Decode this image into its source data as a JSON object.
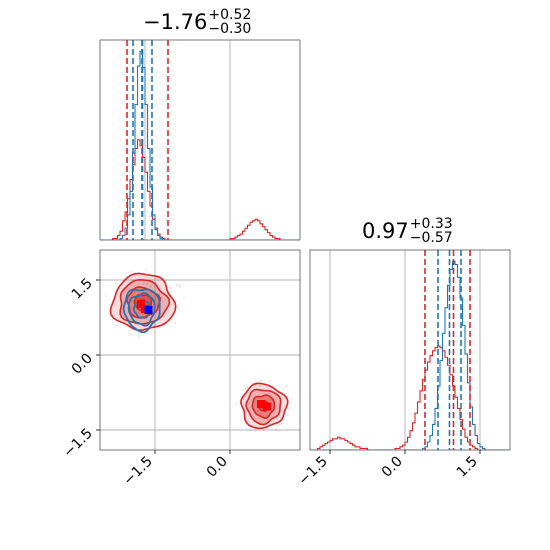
{
  "colors": {
    "sample_a": "#d62728",
    "sample_b": "#1f77b4",
    "truth_a": "#ff0000",
    "truth_b": "#0000ff"
  },
  "chart_data": [
    {
      "type": "histogram",
      "panel": "marginal-param-1",
      "title": {
        "value": "−1.76",
        "upper": "+0.52",
        "lower": "−0.30"
      },
      "xlim": [
        -2.6,
        1.4
      ],
      "bins": [
        -2.6,
        -2.55,
        -2.5,
        -2.45,
        -2.4,
        -2.35,
        -2.3,
        -2.25,
        -2.2,
        -2.15,
        -2.1,
        -2.05,
        -2.0,
        -1.95,
        -1.9,
        -1.85,
        -1.8,
        -1.75,
        -1.7,
        -1.65,
        -1.6,
        -1.55,
        -1.5,
        -1.45,
        -1.4,
        -1.35,
        -1.3,
        -1.25,
        -1.2,
        -1.15,
        -1.1,
        -1.05,
        -1.0,
        -0.95,
        -0.9,
        -0.85,
        -0.8,
        -0.75,
        -0.7,
        -0.65,
        -0.6,
        -0.55,
        -0.5,
        -0.45,
        -0.4,
        -0.35,
        -0.3,
        -0.25,
        -0.2,
        -0.15,
        -0.1,
        -0.05,
        0.0,
        0.05,
        0.1,
        0.15,
        0.2,
        0.25,
        0.3,
        0.35,
        0.4,
        0.45,
        0.5,
        0.55,
        0.6,
        0.65,
        0.7,
        0.75,
        0.8,
        0.85,
        0.9,
        0.95,
        1.0,
        1.05,
        1.1,
        1.15,
        1.2,
        1.25,
        1.3,
        1.35,
        1.4
      ],
      "series": [
        {
          "color": "#d62728",
          "counts": [
            0,
            0,
            0,
            0,
            0,
            1,
            1,
            3,
            6,
            13,
            19,
            28,
            41,
            51,
            62,
            68,
            64,
            56,
            46,
            33,
            23,
            14,
            8,
            4,
            2,
            1,
            0,
            0,
            0,
            0,
            0,
            0,
            0,
            0,
            0,
            0,
            0,
            0,
            0,
            0,
            0,
            0,
            0,
            0,
            0,
            0,
            0,
            0,
            0,
            0,
            0,
            0,
            1,
            1,
            2,
            3,
            4,
            6,
            8,
            10,
            12,
            13,
            14,
            13,
            11,
            9,
            7,
            5,
            3,
            2,
            1,
            1,
            0,
            0,
            0,
            0,
            0,
            0,
            0,
            0
          ]
        },
        {
          "color": "#1f77b4",
          "counts": [
            0,
            0,
            0,
            0,
            0,
            0,
            0,
            0,
            1,
            3,
            8,
            17,
            33,
            59,
            92,
            118,
            128,
            117,
            92,
            62,
            36,
            17,
            7,
            3,
            1,
            0,
            0,
            0,
            0,
            0,
            0,
            0,
            0,
            0,
            0,
            0,
            0,
            0,
            0,
            0,
            0,
            0,
            0,
            0,
            0,
            0,
            0,
            0,
            0,
            0,
            0,
            0,
            0,
            0,
            0,
            0,
            0,
            0,
            0,
            0,
            0,
            0,
            0,
            0,
            0,
            0,
            0,
            0,
            0,
            0,
            0,
            0,
            0,
            0,
            0,
            0,
            0,
            0,
            0,
            0
          ]
        }
      ],
      "vlines": [
        {
          "x": -2.06,
          "color": "#d62728"
        },
        {
          "x": -1.76,
          "color": "#d62728"
        },
        {
          "x": -1.24,
          "color": "#d62728"
        },
        {
          "x": -1.94,
          "color": "#1f77b4"
        },
        {
          "x": -1.75,
          "color": "#1f77b4"
        },
        {
          "x": -1.56,
          "color": "#1f77b4"
        }
      ],
      "truth_lines": [
        -1.7,
        0.0
      ],
      "grid": true
    },
    {
      "type": "histogram",
      "panel": "marginal-param-2",
      "title": {
        "value": "0.97",
        "upper": "+0.33",
        "lower": "−0.57"
      },
      "xlim": [
        -1.9,
        2.1
      ],
      "xticks": [
        -1.5,
        0.0,
        1.5
      ],
      "xticklabels": [
        "−1.5",
        "0.0",
        "1.5"
      ],
      "bins": [
        -1.9,
        -1.85,
        -1.8,
        -1.75,
        -1.7,
        -1.65,
        -1.6,
        -1.55,
        -1.5,
        -1.45,
        -1.4,
        -1.35,
        -1.3,
        -1.25,
        -1.2,
        -1.15,
        -1.1,
        -1.05,
        -1.0,
        -0.95,
        -0.9,
        -0.85,
        -0.8,
        -0.75,
        -0.7,
        -0.65,
        -0.6,
        -0.55,
        -0.5,
        -0.45,
        -0.4,
        -0.35,
        -0.3,
        -0.25,
        -0.2,
        -0.15,
        -0.1,
        -0.05,
        0.0,
        0.05,
        0.1,
        0.15,
        0.2,
        0.25,
        0.3,
        0.35,
        0.4,
        0.45,
        0.5,
        0.55,
        0.6,
        0.65,
        0.7,
        0.75,
        0.8,
        0.85,
        0.9,
        0.95,
        1.0,
        1.05,
        1.1,
        1.15,
        1.2,
        1.25,
        1.3,
        1.35,
        1.4,
        1.45,
        1.5,
        1.55,
        1.6,
        1.65,
        1.7,
        1.75,
        1.8,
        1.85,
        1.9,
        1.95,
        2.0,
        2.05,
        2.1
      ],
      "series": [
        {
          "color": "#d62728",
          "counts": [
            0,
            0,
            0,
            1,
            2,
            3,
            4,
            5,
            6,
            7,
            7,
            8,
            7,
            7,
            6,
            5,
            4,
            3,
            2,
            2,
            1,
            1,
            1,
            0,
            0,
            0,
            0,
            0,
            0,
            0,
            0,
            0,
            0,
            0,
            1,
            1,
            2,
            3,
            5,
            8,
            12,
            17,
            23,
            30,
            37,
            44,
            50,
            55,
            59,
            62,
            64,
            65,
            64,
            62,
            58,
            53,
            47,
            40,
            33,
            26,
            19,
            13,
            8,
            5,
            3,
            2,
            1,
            0,
            0,
            0,
            0,
            0,
            0,
            0,
            0,
            0,
            0,
            0,
            0,
            0
          ]
        },
        {
          "color": "#1f77b4",
          "counts": [
            0,
            0,
            0,
            0,
            0,
            0,
            0,
            0,
            0,
            0,
            0,
            0,
            0,
            0,
            0,
            0,
            0,
            0,
            0,
            0,
            0,
            0,
            0,
            0,
            0,
            0,
            0,
            0,
            0,
            0,
            0,
            0,
            0,
            0,
            0,
            0,
            0,
            0,
            0,
            0,
            0,
            0,
            0,
            0,
            0,
            1,
            2,
            5,
            9,
            16,
            26,
            40,
            56,
            73,
            89,
            103,
            113,
            118,
            116,
            108,
            95,
            78,
            60,
            42,
            27,
            16,
            9,
            4,
            2,
            1,
            0,
            0,
            0,
            0,
            0,
            0,
            0,
            0,
            0,
            0
          ]
        }
      ],
      "vlines": [
        {
          "x": 0.4,
          "color": "#d62728"
        },
        {
          "x": 0.97,
          "color": "#d62728"
        },
        {
          "x": 1.3,
          "color": "#d62728"
        },
        {
          "x": 0.66,
          "color": "#1f77b4"
        },
        {
          "x": 0.89,
          "color": "#1f77b4"
        },
        {
          "x": 1.12,
          "color": "#1f77b4"
        }
      ],
      "truth_lines": [
        -1.5,
        0.0,
        1.5
      ],
      "grid": true
    },
    {
      "type": "contour",
      "panel": "joint-param-1-vs-param-2",
      "xlim": [
        -2.6,
        1.4
      ],
      "ylim": [
        -1.9,
        2.1
      ],
      "xticks": [
        -1.5,
        0.0
      ],
      "xticklabels": [
        "−1.5",
        "0.0"
      ],
      "yticks": [
        -1.5,
        0.0,
        1.5
      ],
      "yticklabels": [
        "−1.5",
        "0.0",
        "1.5"
      ],
      "series": [
        {
          "color": "#d62728",
          "modes": [
            {
              "center": [
                -1.74,
                1.05
              ],
              "radii": [
                [
                  0.62,
                  0.56
                ],
                [
                  0.48,
                  0.44
                ],
                [
                  0.32,
                  0.3
                ],
                [
                  0.17,
                  0.16
                ]
              ]
            },
            {
              "center": [
                0.67,
                -1.02
              ],
              "radii": [
                [
                  0.45,
                  0.44
                ],
                [
                  0.34,
                  0.34
                ],
                [
                  0.22,
                  0.22
                ],
                [
                  0.1,
                  0.1
                ]
              ]
            }
          ]
        },
        {
          "color": "#1f77b4",
          "modes": [
            {
              "center": [
                -1.76,
                0.92
              ],
              "radii": [
                [
                  0.36,
                  0.42
                ],
                [
                  0.26,
                  0.31
                ],
                [
                  0.15,
                  0.18
                ]
              ]
            }
          ]
        }
      ],
      "truth_points": [
        {
          "x": -1.78,
          "y": 1.02,
          "color": "#ff0000"
        },
        {
          "x": -1.7,
          "y": 0.92,
          "color": "#ff0000"
        },
        {
          "x": -1.63,
          "y": 0.9,
          "color": "#0000ff"
        },
        {
          "x": 0.62,
          "y": -0.98,
          "color": "#ff0000"
        },
        {
          "x": 0.74,
          "y": -1.03,
          "color": "#ff0000"
        }
      ],
      "truth_vlines": [
        -1.5,
        0.0
      ],
      "truth_hlines": [
        1.5,
        0.0,
        -1.5
      ],
      "grid": true
    }
  ]
}
